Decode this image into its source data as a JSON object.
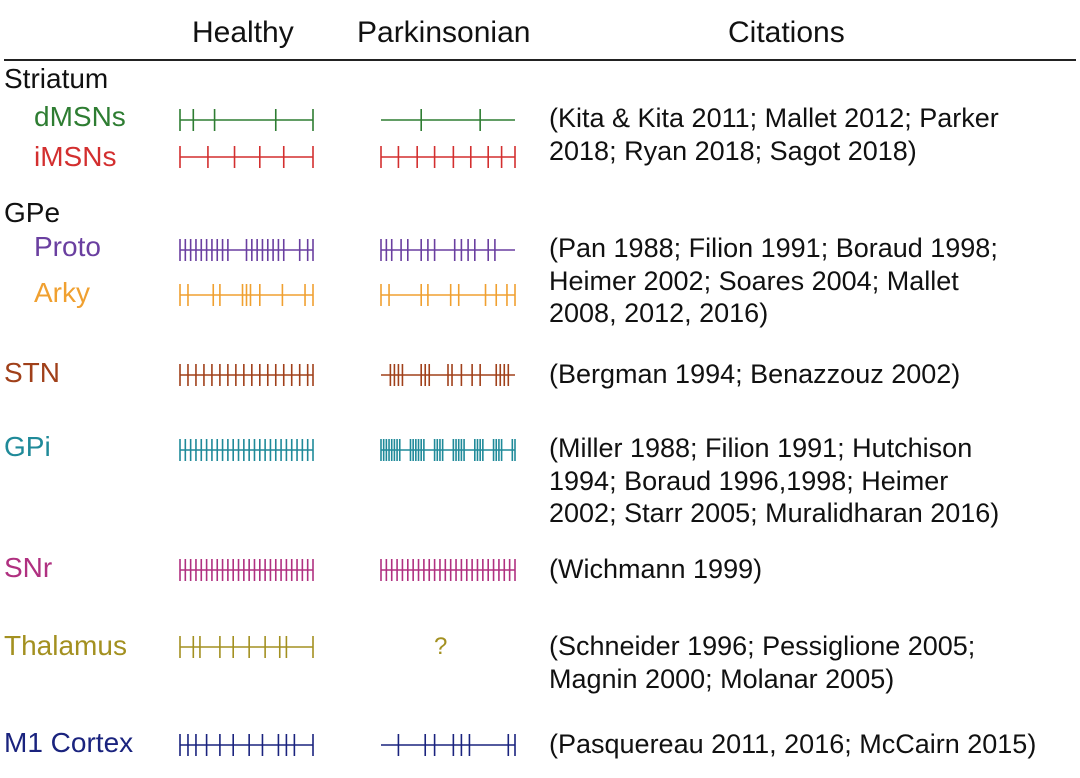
{
  "header": {
    "healthy": "Healthy",
    "parkinsonian": "Parkinsonian",
    "citations": "Citations"
  },
  "regions": [
    {
      "id": "striatum",
      "label": "Striatum",
      "color": "#111111",
      "citation": ""
    },
    {
      "id": "dmsns",
      "label": "dMSNs",
      "color": "#2e7d32",
      "citation": "(Kita & Kita 2011; Mallet 2012; Parker\n2018; Ryan 2018; Sagot 2018)"
    },
    {
      "id": "imsns",
      "label": "iMSNs",
      "color": "#d32f2f",
      "citation": ""
    },
    {
      "id": "gpe",
      "label": "GPe",
      "color": "#111111",
      "citation": ""
    },
    {
      "id": "proto",
      "label": "Proto",
      "color": "#6a3fa0",
      "citation": "(Pan 1988; Filion 1991; Boraud 1998;\nHeimer 2002; Soares 2004; Mallet\n2008, 2012, 2016)"
    },
    {
      "id": "arky",
      "label": "Arky",
      "color": "#f0a030",
      "citation": ""
    },
    {
      "id": "stn",
      "label": "STN",
      "color": "#a0401a",
      "citation": "(Bergman 1994; Benazzouz 2002)"
    },
    {
      "id": "gpi",
      "label": "GPi",
      "color": "#1f8a99",
      "citation": "(Miller 1988; Filion 1991; Hutchison\n1994; Boraud 1996,1998; Heimer\n2002; Starr 2005; Muralidharan 2016)"
    },
    {
      "id": "snr",
      "label": "SNr",
      "color": "#b03080",
      "citation": "(Wichmann 1999)"
    },
    {
      "id": "thalamus",
      "label": "Thalamus",
      "color": "#a39020",
      "citation": "(Schneider 1996; Pessiglione 2005;\nMagnin 2000; Molanar 2005)"
    },
    {
      "id": "m1",
      "label": "M1 Cortex",
      "color": "#1a237e",
      "citation": "(Pasquereau 2011, 2016; McCairn 2015)"
    }
  ],
  "parkinsonian_unknown": {
    "region": "thalamus",
    "text": "?"
  },
  "spike_trains": [
    {
      "region": "dmsns",
      "healthy": [
        0.0,
        0.1,
        0.26,
        0.72,
        1.0
      ],
      "parkinsonian": [
        0.3,
        0.74
      ]
    },
    {
      "region": "imsns",
      "healthy": [
        0.0,
        0.21,
        0.41,
        0.6,
        0.78,
        1.0
      ],
      "parkinsonian": [
        0.0,
        0.13,
        0.27,
        0.4,
        0.54,
        0.67,
        0.8,
        0.9,
        1.0
      ]
    },
    {
      "region": "proto",
      "healthy": [
        0.0,
        0.04,
        0.08,
        0.12,
        0.16,
        0.2,
        0.24,
        0.28,
        0.32,
        0.36,
        0.5,
        0.54,
        0.58,
        0.62,
        0.66,
        0.7,
        0.74,
        0.78,
        0.9,
        0.96,
        1.0
      ],
      "parkinsonian": [
        0.0,
        0.04,
        0.08,
        0.15,
        0.2,
        0.3,
        0.35,
        0.4,
        0.55,
        0.6,
        0.65,
        0.7,
        0.8,
        0.85
      ]
    },
    {
      "region": "arky",
      "healthy": [
        0.0,
        0.06,
        0.25,
        0.3,
        0.47,
        0.5,
        0.53,
        0.6,
        0.77,
        0.94,
        1.0
      ],
      "parkinsonian": [
        0.0,
        0.06,
        0.3,
        0.35,
        0.52,
        0.58,
        0.78,
        0.86,
        0.94,
        1.0
      ]
    },
    {
      "region": "stn",
      "healthy": [
        0.0,
        0.06,
        0.12,
        0.18,
        0.24,
        0.3,
        0.36,
        0.42,
        0.48,
        0.54,
        0.6,
        0.66,
        0.72,
        0.78,
        0.84,
        0.9,
        0.96,
        1.0
      ],
      "parkinsonian": [
        0.07,
        0.1,
        0.13,
        0.16,
        0.3,
        0.33,
        0.36,
        0.5,
        0.53,
        0.6,
        0.68,
        0.74,
        0.86,
        0.89,
        0.92,
        0.95
      ]
    },
    {
      "region": "gpi",
      "healthy": [
        0.0,
        0.04,
        0.08,
        0.12,
        0.16,
        0.2,
        0.24,
        0.28,
        0.32,
        0.36,
        0.4,
        0.44,
        0.48,
        0.52,
        0.56,
        0.6,
        0.64,
        0.68,
        0.72,
        0.76,
        0.8,
        0.84,
        0.88,
        0.92,
        0.96,
        1.0
      ],
      "parkinsonian": [
        0.0,
        0.02,
        0.04,
        0.06,
        0.08,
        0.1,
        0.12,
        0.14,
        0.22,
        0.24,
        0.26,
        0.28,
        0.3,
        0.32,
        0.4,
        0.42,
        0.44,
        0.46,
        0.54,
        0.56,
        0.58,
        0.6,
        0.62,
        0.7,
        0.72,
        0.74,
        0.76,
        0.84,
        0.86,
        0.88,
        0.9,
        0.98,
        1.0
      ]
    },
    {
      "region": "snr",
      "healthy": [
        0.0,
        0.04,
        0.08,
        0.12,
        0.16,
        0.2,
        0.24,
        0.28,
        0.32,
        0.36,
        0.4,
        0.44,
        0.48,
        0.52,
        0.56,
        0.6,
        0.64,
        0.68,
        0.72,
        0.76,
        0.8,
        0.84,
        0.88,
        0.92,
        0.96,
        1.0
      ],
      "parkinsonian": [
        0.0,
        0.04,
        0.08,
        0.12,
        0.16,
        0.2,
        0.24,
        0.28,
        0.32,
        0.36,
        0.4,
        0.44,
        0.48,
        0.52,
        0.56,
        0.6,
        0.64,
        0.68,
        0.72,
        0.76,
        0.8,
        0.84,
        0.88,
        0.92,
        0.96,
        1.0
      ]
    },
    {
      "region": "thalamus",
      "healthy": [
        0.0,
        0.1,
        0.15,
        0.3,
        0.4,
        0.52,
        0.64,
        0.75,
        0.8,
        1.0
      ],
      "parkinsonian": null
    },
    {
      "region": "m1",
      "healthy": [
        0.0,
        0.06,
        0.12,
        0.2,
        0.3,
        0.4,
        0.52,
        0.62,
        0.74,
        0.8,
        0.86,
        1.0
      ],
      "parkinsonian": [
        0.13,
        0.33,
        0.4,
        0.54,
        0.6,
        0.66,
        0.95,
        1.0
      ]
    }
  ]
}
